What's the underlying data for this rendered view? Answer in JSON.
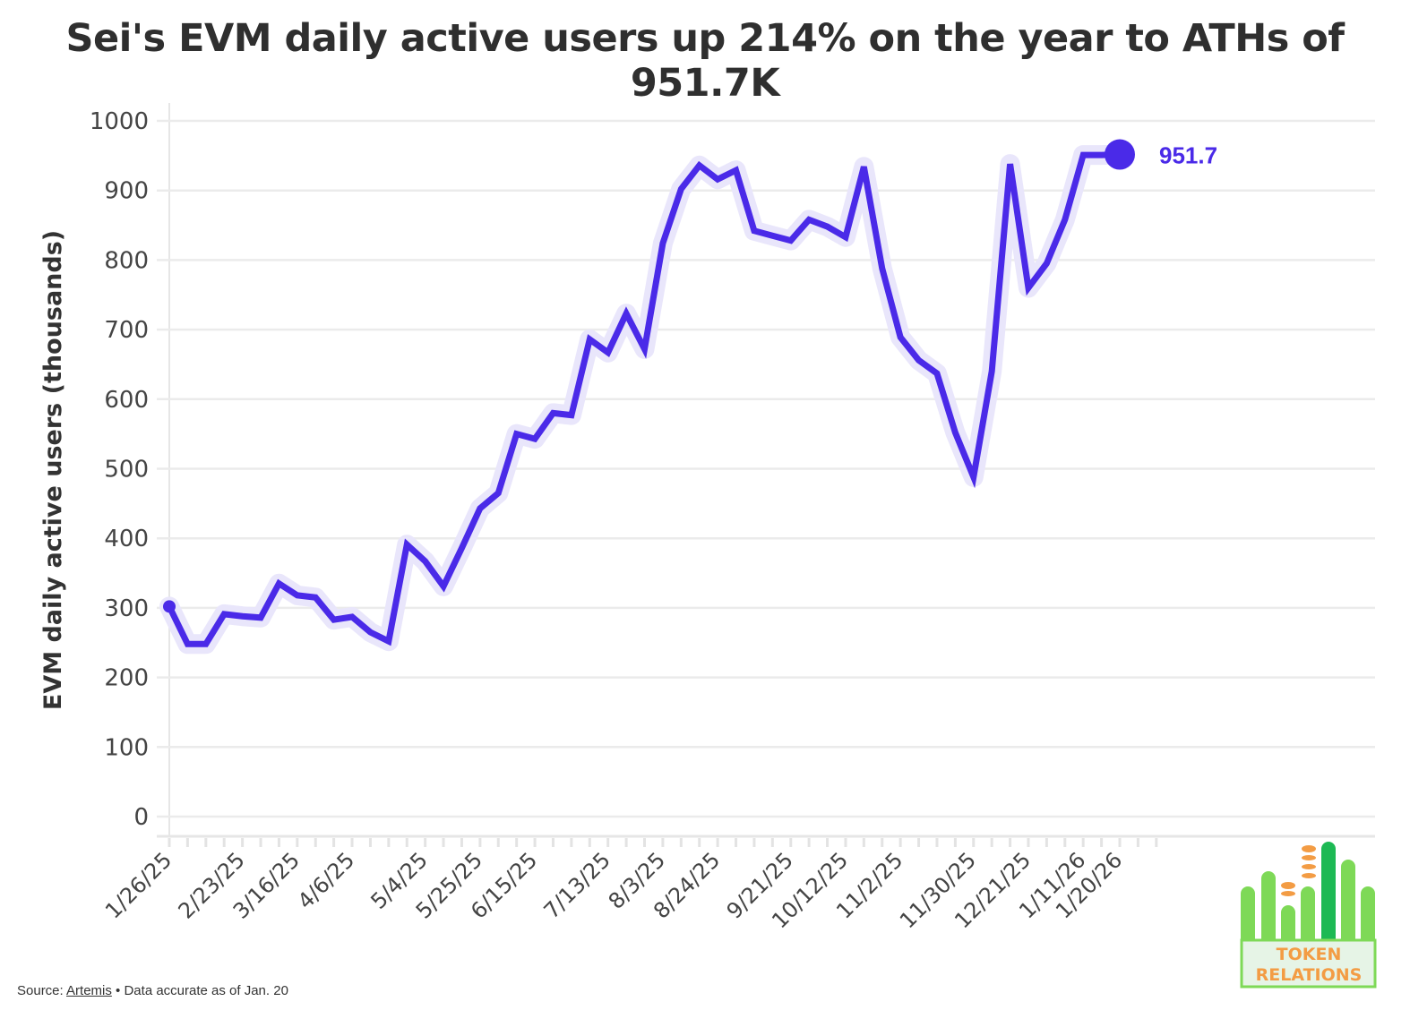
{
  "chart_data": {
    "type": "line",
    "title": "Sei's EVM daily active users up 214% on the year to ATHs of 951.7K",
    "xlabel": "",
    "ylabel": "EVM daily active users (thousands)",
    "ylim": [
      0,
      1000
    ],
    "yticks": [
      0,
      100,
      200,
      300,
      400,
      500,
      600,
      700,
      800,
      900,
      1000
    ],
    "grid": true,
    "series_color": "#4a2ae8",
    "x": [
      "1/26/25",
      "2/2/25",
      "2/9/25",
      "2/16/25",
      "2/23/25",
      "3/2/25",
      "3/9/25",
      "3/16/25",
      "3/23/25",
      "3/30/25",
      "4/6/25",
      "4/13/25",
      "4/20/25",
      "4/27/25",
      "5/4/25",
      "5/11/25",
      "5/18/25",
      "5/25/25",
      "6/1/25",
      "6/8/25",
      "6/15/25",
      "6/22/25",
      "6/29/25",
      "7/6/25",
      "7/13/25",
      "7/20/25",
      "7/27/25",
      "8/3/25",
      "8/10/25",
      "8/17/25",
      "8/24/25",
      "8/31/25",
      "9/7/25",
      "9/14/25",
      "9/21/25",
      "9/28/25",
      "10/5/25",
      "10/12/25",
      "10/19/25",
      "10/26/25",
      "11/2/25",
      "11/9/25",
      "11/16/25",
      "11/23/25",
      "11/30/25",
      "12/7/25",
      "12/14/25",
      "12/21/25",
      "12/28/25",
      "1/4/26",
      "1/11/26",
      "1/18/26",
      "1/20/26"
    ],
    "x_tick_labels": [
      "1/26/25",
      "2/23/25",
      "3/16/25",
      "4/6/25",
      "5/4/25",
      "5/25/25",
      "6/15/25",
      "7/13/25",
      "8/3/25",
      "8/24/25",
      "9/21/25",
      "10/12/25",
      "11/2/25",
      "11/30/25",
      "12/21/25",
      "1/11/26",
      "1/20/26"
    ],
    "values": [
      302,
      248,
      248,
      291,
      288,
      286,
      335,
      318,
      315,
      283,
      287,
      265,
      252,
      391,
      367,
      331,
      386,
      443,
      465,
      550,
      543,
      580,
      577,
      686,
      667,
      723,
      672,
      824,
      902,
      936,
      916,
      929,
      842,
      835,
      828,
      858,
      848,
      833,
      934,
      788,
      689,
      656,
      637,
      552,
      488,
      640,
      938,
      760,
      795,
      858,
      951,
      951,
      951.7
    ],
    "end_label": "951.7"
  },
  "source": {
    "prefix": "Source: ",
    "link": "Artemis",
    "suffix": " • Data accurate as of Jan. 20"
  },
  "logo": {
    "line1": "TOKEN",
    "line2": "RELATIONS"
  }
}
